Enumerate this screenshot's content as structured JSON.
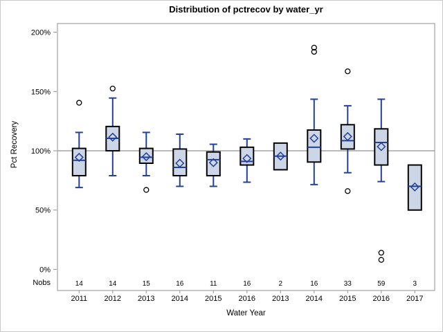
{
  "colors": {
    "box_fill": "#ccd6e6",
    "box_edge": "#000000",
    "line_blue": "#21409a",
    "outlier": "#000000",
    "reference_line": "#a3a3a3",
    "frame": "#8f8f8f",
    "text": "#000000"
  },
  "chart_data": {
    "type": "box",
    "title": "Distribution of pctrecov by water_yr",
    "xlabel": "Water Year",
    "ylabel": "Pct Recovery",
    "nobs_label": "Nobs",
    "grid": "off",
    "legend": "none",
    "ylim": [
      -18,
      208
    ],
    "reference_line": 100,
    "yticks": {
      "values": [
        0,
        50,
        100,
        150,
        200
      ],
      "labels": [
        "0%",
        "50%",
        "100%",
        "150%",
        "200%"
      ]
    },
    "categories": [
      "2011",
      "2012",
      "2013",
      "2014",
      "2015",
      "2016",
      "2013",
      "2014",
      "2015",
      "2016",
      "2017"
    ],
    "nobs": [
      "14",
      "14",
      "15",
      "16",
      "11",
      "16",
      "2",
      "16",
      "33",
      "59",
      "3"
    ],
    "series": [
      {
        "category": "2011",
        "nobs": 14,
        "low": 69,
        "q1": 79,
        "median": 92,
        "mean": 94.5,
        "q3": 102,
        "high": 115.5,
        "outliers": [
          140.5
        ]
      },
      {
        "category": "2012",
        "nobs": 14,
        "low": 79,
        "q1": 100,
        "median": 110.5,
        "mean": 111.5,
        "q3": 120.5,
        "high": 144.5,
        "outliers": [
          152.5
        ]
      },
      {
        "category": "2013",
        "nobs": 15,
        "low": 79,
        "q1": 89.5,
        "median": 94.5,
        "mean": 95,
        "q3": 102,
        "high": 115.5,
        "outliers": [
          67
        ]
      },
      {
        "category": "2014",
        "nobs": 16,
        "low": 70,
        "q1": 79,
        "median": 86,
        "mean": 89.5,
        "q3": 101.5,
        "high": 114,
        "outliers": []
      },
      {
        "category": "2015",
        "nobs": 11,
        "low": 70,
        "q1": 79,
        "median": 92.5,
        "mean": 90,
        "q3": 99,
        "high": 105.5,
        "outliers": []
      },
      {
        "category": "2016",
        "nobs": 16,
        "low": 73.5,
        "q1": 88,
        "median": 91,
        "mean": 93.5,
        "q3": 103,
        "high": 110,
        "outliers": []
      },
      {
        "category": "2013",
        "nobs": 2,
        "low": 84,
        "q1": 84,
        "median": 95.5,
        "mean": 95.5,
        "q3": 106.5,
        "high": 106.5,
        "outliers": []
      },
      {
        "category": "2014",
        "nobs": 16,
        "low": 71.5,
        "q1": 90.5,
        "median": 103,
        "mean": 110.5,
        "q3": 117.5,
        "high": 143.5,
        "outliers": [
          183.5,
          187
        ]
      },
      {
        "category": "2015",
        "nobs": 33,
        "low": 81.5,
        "q1": 101.5,
        "median": 108.5,
        "mean": 112,
        "q3": 122,
        "high": 138,
        "outliers": [
          66,
          167
        ]
      },
      {
        "category": "2016",
        "nobs": 59,
        "low": 74,
        "q1": 88,
        "median": 107,
        "mean": 103.5,
        "q3": 118.5,
        "high": 143.5,
        "outliers": [
          8,
          14
        ]
      },
      {
        "category": "2017",
        "nobs": 3,
        "low": 50,
        "q1": 50,
        "median": 70,
        "mean": 69.5,
        "q3": 88,
        "high": 88,
        "outliers": []
      }
    ]
  }
}
